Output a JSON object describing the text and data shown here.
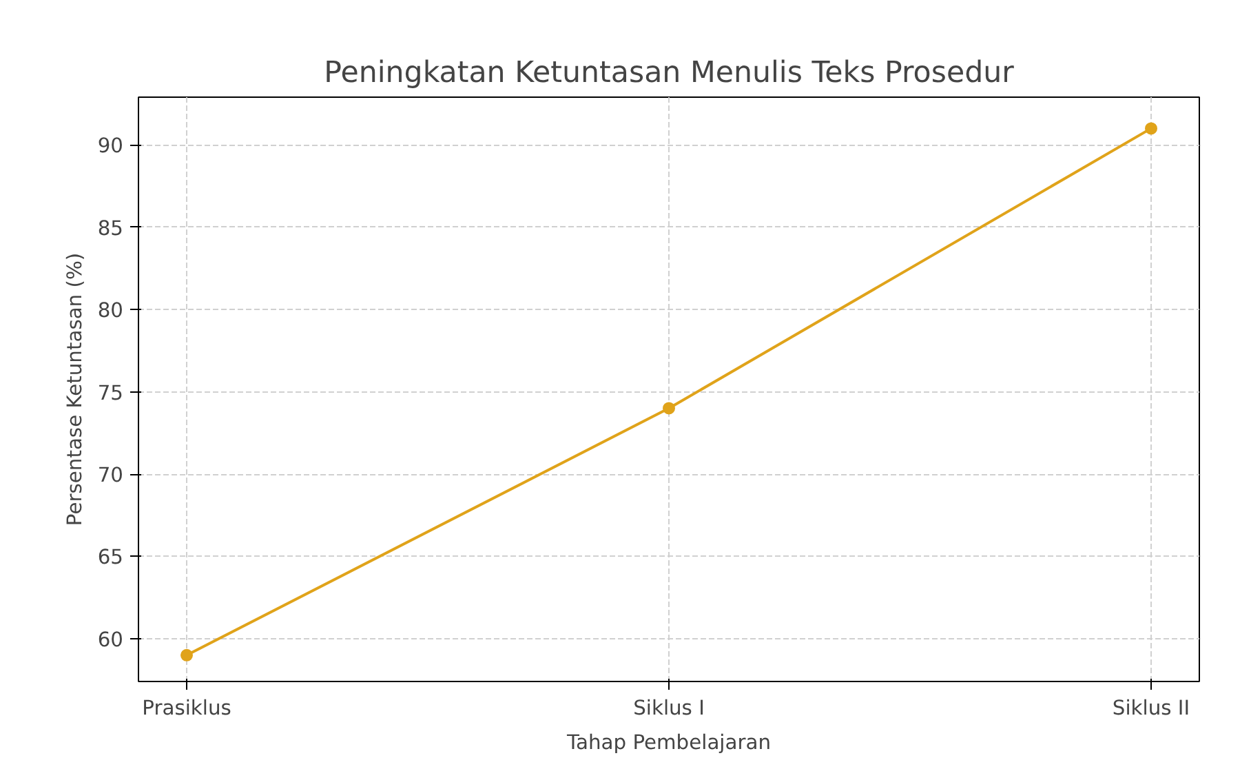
{
  "chart_data": {
    "type": "line",
    "title": "Peningkatan Ketuntasan Menulis Teks Prosedur",
    "xlabel": "Tahap Pembelajaran",
    "ylabel": "Persentase Ketuntasan (%)",
    "categories": [
      "Prasiklus",
      "Siklus I",
      "Siklus II"
    ],
    "series": [
      {
        "color": "#e0a31a",
        "values": [
          59,
          74,
          91
        ]
      }
    ],
    "ylim": [
      57.4,
      92.9
    ],
    "yticks": [
      60,
      65,
      70,
      75,
      80,
      85,
      90
    ],
    "grid": true,
    "marker": "circle",
    "line_style": "solid"
  }
}
